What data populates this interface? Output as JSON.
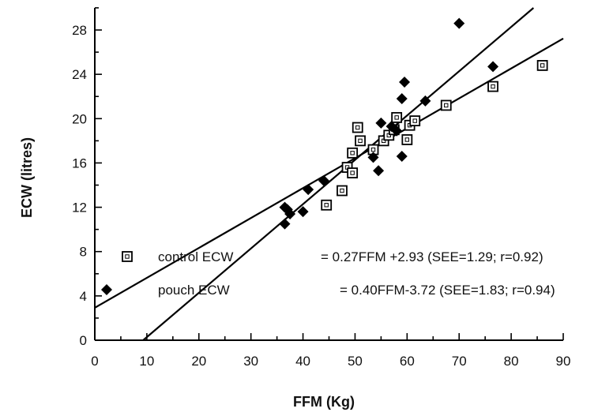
{
  "chart_data": {
    "type": "scatter",
    "xlabel": "FFM (Kg)",
    "ylabel": "ECW (litres)",
    "xlim": [
      0,
      90
    ],
    "ylim": [
      0,
      30
    ],
    "x_ticks": [
      "0",
      "10",
      "20",
      "30",
      "40",
      "50",
      "60",
      "70",
      "80",
      "90"
    ],
    "y_ticks": [
      "0",
      "4",
      "8",
      "12",
      "16",
      "20",
      "24",
      "28"
    ],
    "grid": false,
    "legend_position": "bottom-center",
    "series": [
      {
        "key": "control",
        "marker": "open-square",
        "legend_label": "control ECW",
        "legend_equation": "= 0.27FFM +2.93 (SEE=1.29; r=0.92)",
        "fit": {
          "slope": 0.27,
          "intercept": 2.93
        },
        "points": [
          {
            "x": 44.5,
            "y": 12.2
          },
          {
            "x": 47.5,
            "y": 13.5
          },
          {
            "x": 48.5,
            "y": 15.6
          },
          {
            "x": 49.5,
            "y": 15.1
          },
          {
            "x": 49.5,
            "y": 16.9
          },
          {
            "x": 50.5,
            "y": 19.2
          },
          {
            "x": 51.0,
            "y": 18.0
          },
          {
            "x": 53.5,
            "y": 17.2
          },
          {
            "x": 55.5,
            "y": 18.0
          },
          {
            "x": 56.5,
            "y": 18.5
          },
          {
            "x": 57.5,
            "y": 19.0
          },
          {
            "x": 58.0,
            "y": 20.1
          },
          {
            "x": 60.0,
            "y": 18.1
          },
          {
            "x": 60.5,
            "y": 19.4
          },
          {
            "x": 61.5,
            "y": 19.8
          },
          {
            "x": 67.5,
            "y": 21.2
          },
          {
            "x": 76.5,
            "y": 22.9
          },
          {
            "x": 86.0,
            "y": 24.8
          }
        ]
      },
      {
        "key": "pouch",
        "marker": "filled-diamond",
        "legend_label": "pouch ECW",
        "legend_equation": "= 0.40FFM-3.72 (SEE=1.83; r=0.94)",
        "fit": {
          "slope": 0.4,
          "intercept": -3.72
        },
        "points": [
          {
            "x": 36.5,
            "y": 10.5
          },
          {
            "x": 36.5,
            "y": 12.0
          },
          {
            "x": 37.0,
            "y": 11.8
          },
          {
            "x": 37.5,
            "y": 11.4
          },
          {
            "x": 40.0,
            "y": 11.6
          },
          {
            "x": 41.0,
            "y": 13.6
          },
          {
            "x": 44.0,
            "y": 14.4
          },
          {
            "x": 53.5,
            "y": 16.5
          },
          {
            "x": 54.5,
            "y": 15.3
          },
          {
            "x": 55.0,
            "y": 19.6
          },
          {
            "x": 57.0,
            "y": 19.3
          },
          {
            "x": 58.0,
            "y": 18.9
          },
          {
            "x": 59.0,
            "y": 16.6
          },
          {
            "x": 59.0,
            "y": 21.8
          },
          {
            "x": 59.5,
            "y": 23.3
          },
          {
            "x": 63.5,
            "y": 21.6
          },
          {
            "x": 70.0,
            "y": 28.6
          },
          {
            "x": 76.5,
            "y": 24.7
          }
        ]
      }
    ]
  }
}
